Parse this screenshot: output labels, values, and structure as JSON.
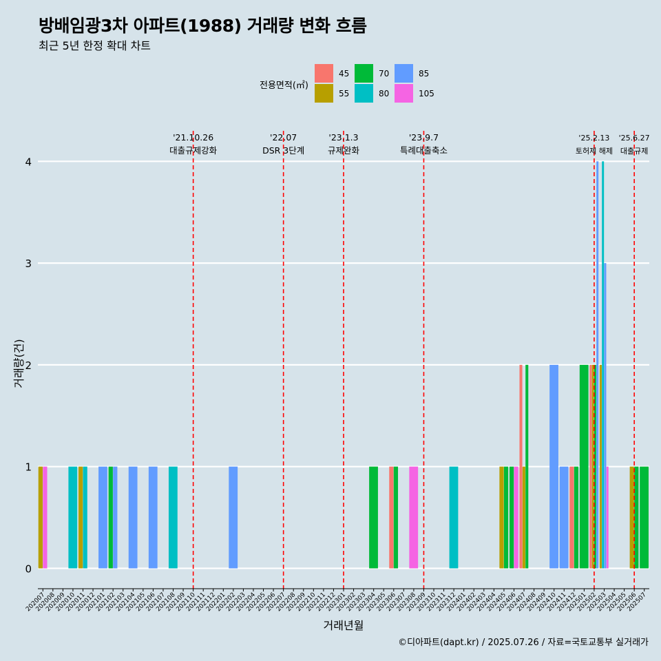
{
  "header": {
    "title": "방배임광3차 아파트(1988) 거래량 변화 흐름",
    "subtitle": "최근 5년 한정 확대 차트"
  },
  "caption": "©디아파트(dapt.kr) / 2025.07.26 / 자료=국토교통부 실거래가",
  "chart_data": {
    "type": "bar",
    "xlabel": "거래년월",
    "ylabel": "거래량(건)",
    "ylim": [
      -0.2,
      4.3
    ],
    "yticks": [
      0,
      1,
      2,
      3,
      4
    ],
    "grid": true,
    "legend": {
      "title": "전용면적(㎡)",
      "placement": "top",
      "entries": [
        {
          "name": "45",
          "color": "#f8766d"
        },
        {
          "name": "55",
          "color": "#b79f00"
        },
        {
          "name": "70",
          "color": "#00ba38"
        },
        {
          "name": "80",
          "color": "#00bfc4"
        },
        {
          "name": "85",
          "color": "#619cff"
        },
        {
          "name": "105",
          "color": "#f564e3"
        }
      ]
    },
    "categories": [
      "202007",
      "202008",
      "202009",
      "202010",
      "202011",
      "202012",
      "202101",
      "202102",
      "202103",
      "202104",
      "202105",
      "202106",
      "202107",
      "202108",
      "202109",
      "202110",
      "202111",
      "202112",
      "202201",
      "202202",
      "202203",
      "202204",
      "202205",
      "202206",
      "202207",
      "202208",
      "202209",
      "202210",
      "202211",
      "202212",
      "202301",
      "202302",
      "202303",
      "202304",
      "202305",
      "202306",
      "202307",
      "202308",
      "202309",
      "202310",
      "202311",
      "202312",
      "202401",
      "202402",
      "202403",
      "202404",
      "202405",
      "202406",
      "202407",
      "202408",
      "202409",
      "202410",
      "202411",
      "202412",
      "202501",
      "202502",
      "202503",
      "202504",
      "202505",
      "202506",
      "202507"
    ],
    "transactions": [
      {
        "month": "202007",
        "area": "55",
        "count": 1
      },
      {
        "month": "202007",
        "area": "105",
        "count": 1
      },
      {
        "month": "202010",
        "area": "80",
        "count": 1
      },
      {
        "month": "202011",
        "area": "55",
        "count": 1
      },
      {
        "month": "202011",
        "area": "80",
        "count": 1
      },
      {
        "month": "202101",
        "area": "85",
        "count": 1
      },
      {
        "month": "202102",
        "area": "70",
        "count": 1
      },
      {
        "month": "202102",
        "area": "85",
        "count": 1
      },
      {
        "month": "202104",
        "area": "85",
        "count": 1
      },
      {
        "month": "202106",
        "area": "85",
        "count": 1
      },
      {
        "month": "202108",
        "area": "80",
        "count": 1
      },
      {
        "month": "202202",
        "area": "85",
        "count": 1
      },
      {
        "month": "202304",
        "area": "70",
        "count": 1
      },
      {
        "month": "202306",
        "area": "45",
        "count": 1
      },
      {
        "month": "202306",
        "area": "70",
        "count": 1
      },
      {
        "month": "202308",
        "area": "105",
        "count": 1
      },
      {
        "month": "202312",
        "area": "80",
        "count": 1
      },
      {
        "month": "202405",
        "area": "55",
        "count": 1
      },
      {
        "month": "202405",
        "area": "70",
        "count": 1
      },
      {
        "month": "202406",
        "area": "70",
        "count": 1
      },
      {
        "month": "202406",
        "area": "105",
        "count": 1
      },
      {
        "month": "202407",
        "area": "45",
        "count": 2
      },
      {
        "month": "202407",
        "area": "55",
        "count": 1
      },
      {
        "month": "202407",
        "area": "70",
        "count": 2
      },
      {
        "month": "202410",
        "area": "85",
        "count": 2
      },
      {
        "month": "202411",
        "area": "85",
        "count": 1
      },
      {
        "month": "202412",
        "area": "45",
        "count": 1
      },
      {
        "month": "202412",
        "area": "70",
        "count": 1
      },
      {
        "month": "202501",
        "area": "70",
        "count": 2
      },
      {
        "month": "202502",
        "area": "45",
        "count": 2
      },
      {
        "month": "202502",
        "area": "55",
        "count": 2
      },
      {
        "month": "202502",
        "area": "70",
        "count": 2
      },
      {
        "month": "202502",
        "area": "85",
        "count": 4
      },
      {
        "month": "202503",
        "area": "55",
        "count": 2
      },
      {
        "month": "202503",
        "area": "80",
        "count": 4
      },
      {
        "month": "202503",
        "area": "85",
        "count": 3
      },
      {
        "month": "202503",
        "area": "105",
        "count": 1
      },
      {
        "month": "202506",
        "area": "55",
        "count": 1
      },
      {
        "month": "202506",
        "area": "70",
        "count": 1
      },
      {
        "month": "202507",
        "area": "70",
        "count": 1
      }
    ],
    "annotations": [
      {
        "month_pos": 15.5,
        "date": "'21.10.26",
        "label": "대출규제강화"
      },
      {
        "month_pos": 24.5,
        "date": "'22.07",
        "label": "DSR 3단계"
      },
      {
        "month_pos": 30.5,
        "date": "'23.1.3",
        "label": "규제완화"
      },
      {
        "month_pos": 38.5,
        "date": "'23.9.7",
        "label": "특례대출축소"
      },
      {
        "month_pos": 55.5,
        "date": "'25.2.13",
        "label": "토허제 해제"
      },
      {
        "month_pos": 59.5,
        "date": "'25.6.27",
        "label": "대출규제"
      }
    ],
    "line_color": "#ff0000"
  }
}
